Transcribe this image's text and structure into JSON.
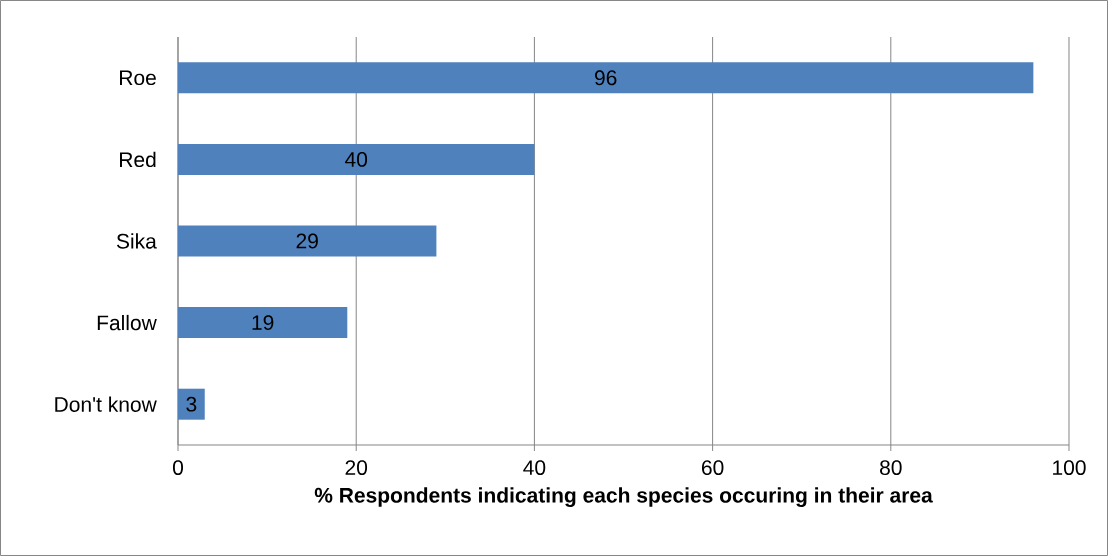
{
  "chart_data": {
    "type": "bar",
    "orientation": "horizontal",
    "categories": [
      "Roe",
      "Red",
      "Sika",
      "Fallow",
      "Don't know"
    ],
    "values": [
      96,
      40,
      29,
      19,
      3
    ],
    "color": "#4f81bd",
    "xlim": [
      0,
      100
    ],
    "xticks": [
      0,
      20,
      40,
      60,
      80,
      100
    ],
    "xlabel": "% Respondents indicating each species occuring in their area",
    "grid": "x",
    "data_labels": true
  }
}
